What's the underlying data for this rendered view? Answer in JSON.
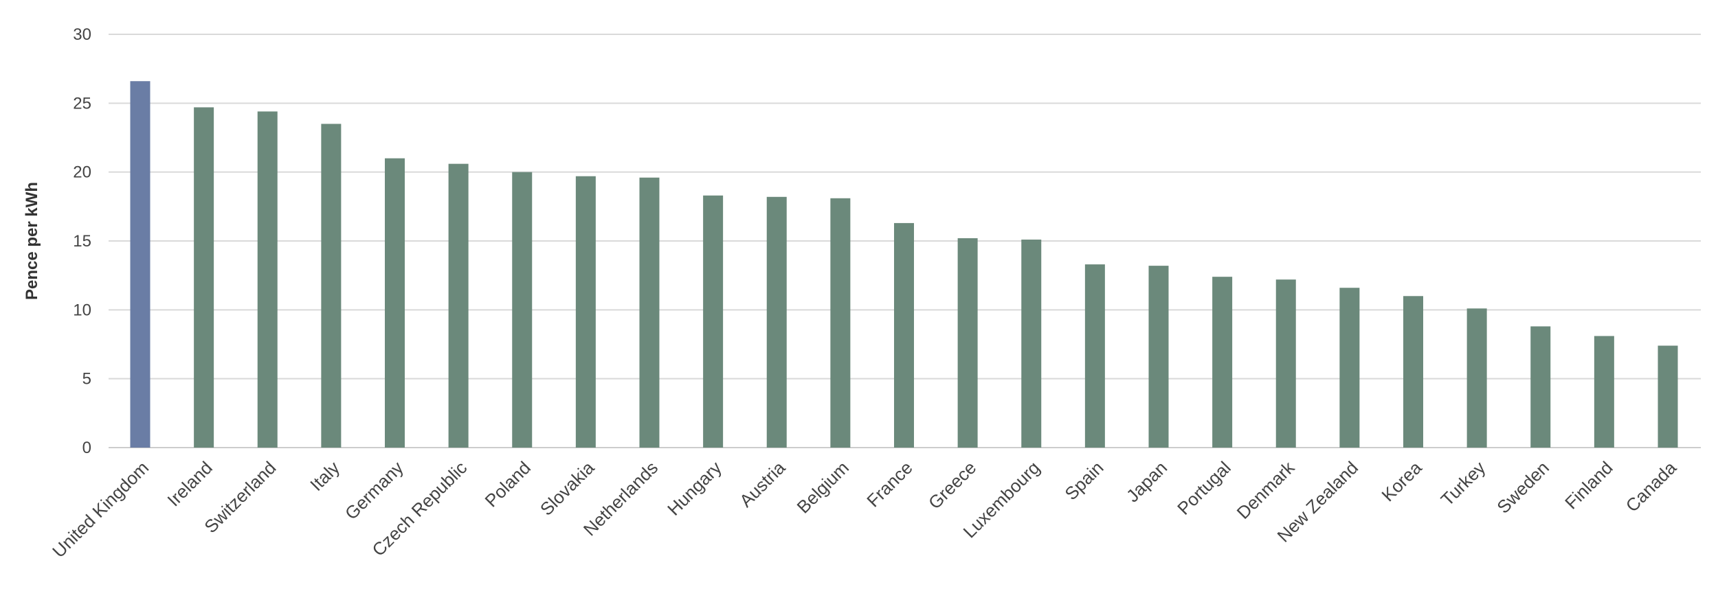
{
  "chart_data": {
    "type": "bar",
    "title": "",
    "xlabel": "",
    "ylabel": "Pence per kWh",
    "ylim": [
      0,
      30
    ],
    "yticks": [
      0,
      5,
      10,
      15,
      20,
      25,
      30
    ],
    "grid": true,
    "legend": "none",
    "categories": [
      "United Kingdom",
      "Ireland",
      "Switzerland",
      "Italy",
      "Germany",
      "Czech Republic",
      "Poland",
      "Slovakia",
      "Netherlands",
      "Hungary",
      "Austria",
      "Belgium",
      "France",
      "Greece",
      "Luxembourg",
      "Spain",
      "Japan",
      "Portugal",
      "Denmark",
      "New Zealand",
      "Korea",
      "Turkey",
      "Sweden",
      "Finland",
      "Canada"
    ],
    "values": [
      26.6,
      24.7,
      24.4,
      23.5,
      21.0,
      20.6,
      20.0,
      19.7,
      19.6,
      18.3,
      18.2,
      18.1,
      16.3,
      15.2,
      15.1,
      13.3,
      13.2,
      12.4,
      12.2,
      11.6,
      11.0,
      10.1,
      8.8,
      8.1,
      7.4
    ],
    "colors": {
      "highlight": "#6a7da5",
      "default": "#6b897b"
    },
    "highlight_category": "United Kingdom"
  }
}
